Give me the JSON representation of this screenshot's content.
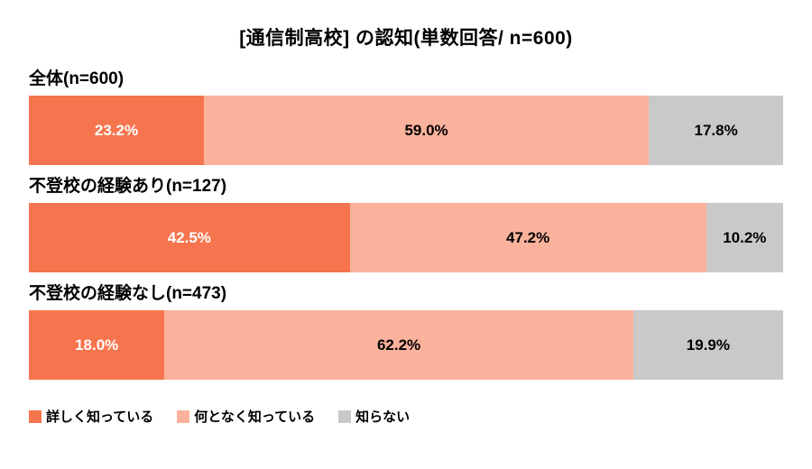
{
  "chart_data": {
    "type": "bar",
    "orientation": "horizontal-stacked",
    "title": "[通信制高校] の認知(単数回答/ n=600)",
    "categories": [
      "全体(n=600)",
      "不登校の経験あり(n=127)",
      "不登校の経験なし(n=473)"
    ],
    "series": [
      {
        "key": "knows-well",
        "name": "詳しく知っている",
        "color": "#f7754e",
        "label_color": "#ffffff",
        "values": [
          23.2,
          42.5,
          18.0
        ],
        "labels": [
          "23.2%",
          "42.5%",
          "18.0%"
        ]
      },
      {
        "key": "knows-vaguely",
        "name": "何となく知っている",
        "color": "#fbb29c",
        "label_color": "#000000",
        "values": [
          59.0,
          47.2,
          62.2
        ],
        "labels": [
          "59.0%",
          "47.2%",
          "62.2%"
        ]
      },
      {
        "key": "does-not-know",
        "name": "知らない",
        "color": "#c9c9c9",
        "label_color": "#000000",
        "values": [
          17.8,
          10.2,
          19.9
        ],
        "labels": [
          "17.8%",
          "10.2%",
          "19.9%"
        ]
      }
    ],
    "xlim": [
      0,
      100
    ],
    "legend_position": "bottom",
    "grid": false
  }
}
